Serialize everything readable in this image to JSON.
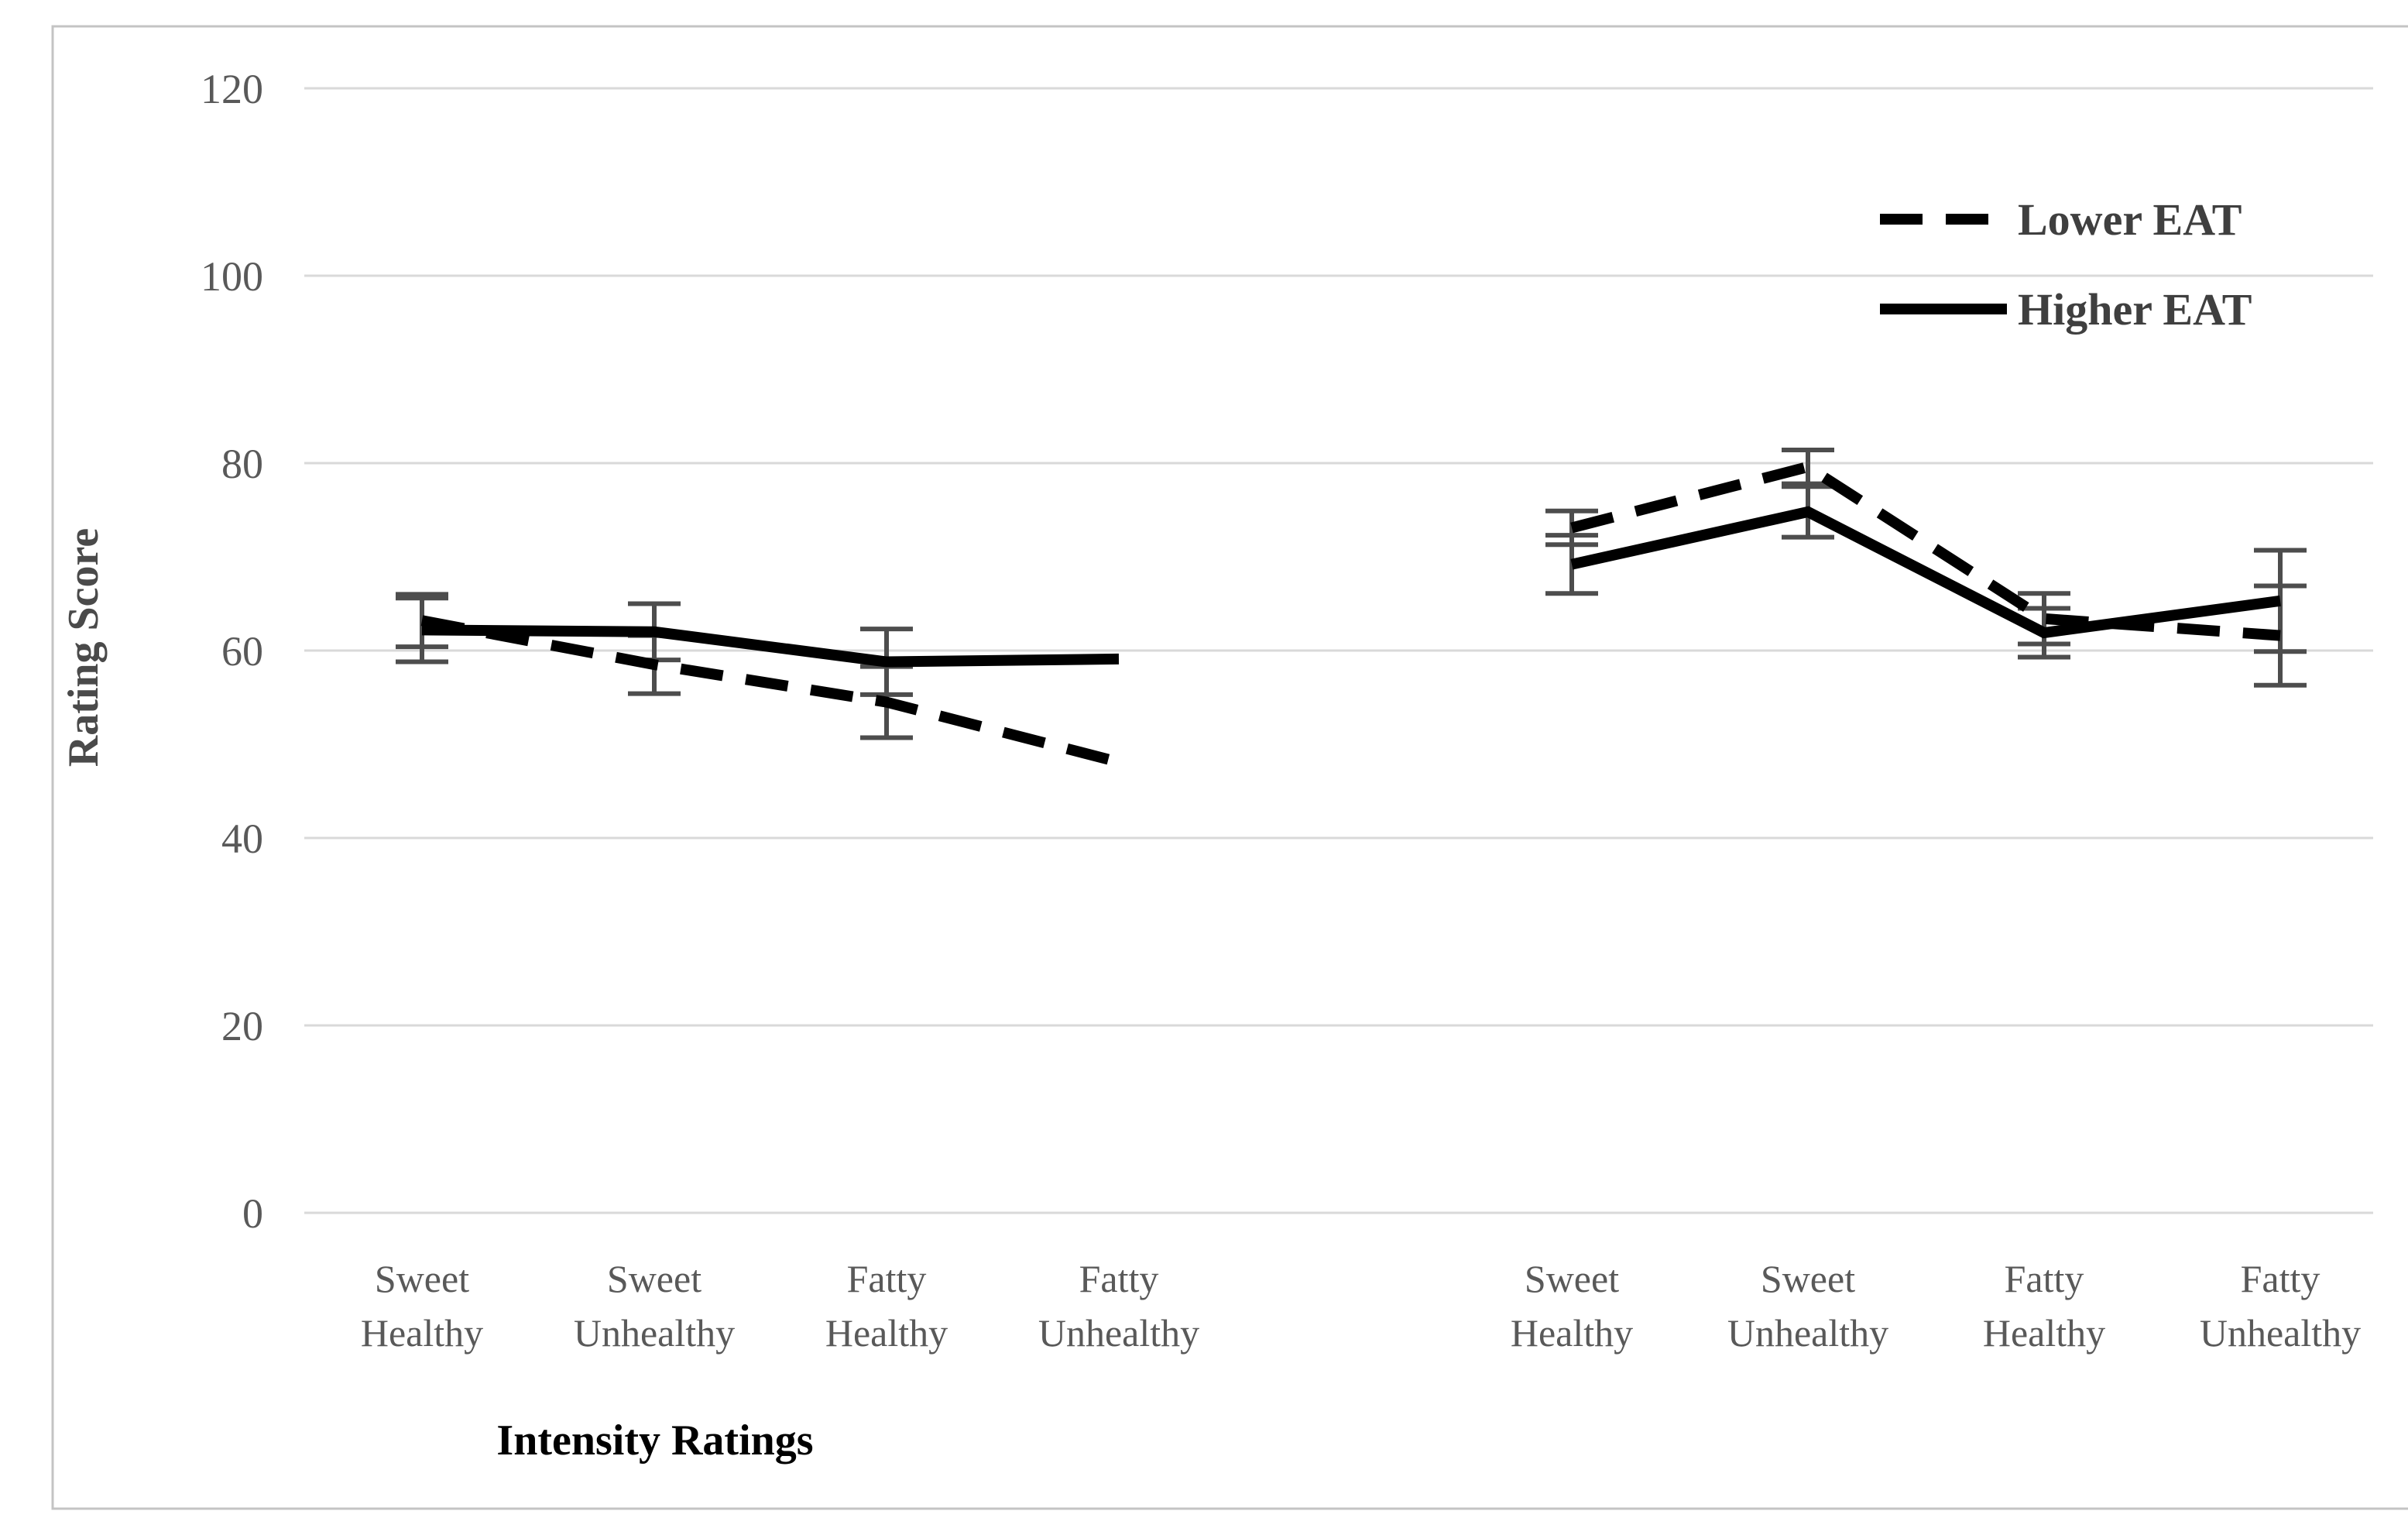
{
  "chart_data": {
    "type": "line",
    "title": "",
    "ylabel": "Rating Score",
    "xlabel": "Intensity Ratings",
    "grid": true,
    "legend_position": "top-right",
    "y_axis": {
      "min": 0,
      "max": 120,
      "tick_step": 20,
      "tick_values": [
        120,
        100,
        80,
        60,
        40,
        20,
        0
      ],
      "ticks": [
        "120",
        "100",
        "80",
        "60",
        "40",
        "20",
        "0"
      ]
    },
    "groups": [
      {
        "name": "left-group",
        "axis_title": "Intensity Ratings",
        "categories": [
          [
            "Sweet",
            "Healthy"
          ],
          [
            "Sweet",
            "Unhealthy"
          ],
          [
            "Fatty",
            "Healthy"
          ],
          [
            "Fatty",
            "Unhealthy"
          ]
        ]
      },
      {
        "name": "right-group",
        "axis_title": "",
        "categories": [
          [
            "Sweet",
            "Healthy"
          ],
          [
            "Sweet",
            "Unhealthy"
          ],
          [
            "Fatty",
            "Healthy"
          ],
          [
            "Fatty",
            "Unhealthy"
          ]
        ]
      }
    ],
    "series": [
      {
        "name": "Lower EAT",
        "style": "dashed",
        "left_values": [
          63.2,
          58.5,
          54.5,
          48.1
        ],
        "left_errors": [
          2.8,
          3.1,
          3.8,
          null
        ],
        "right_values": [
          73.1,
          79.6,
          63.4,
          61.6
        ],
        "right_errors": [
          1.8,
          1.8,
          2.7,
          5.3
        ]
      },
      {
        "name": "Higher EAT",
        "style": "solid",
        "left_values": [
          62.2,
          62.0,
          58.8,
          59.1
        ],
        "left_errors": [
          3.4,
          3.0,
          3.5,
          null
        ],
        "right_values": [
          69.2,
          74.8,
          61.9,
          65.3
        ],
        "right_errors": [
          3.1,
          2.7,
          2.6,
          5.4
        ]
      }
    ],
    "colors": {
      "series_line": "#000000",
      "error_bar": "#4d4d4d",
      "gridline": "#d9d9d9",
      "border": "#c4c4c4",
      "axis_text": "#595959",
      "background": "#ffffff"
    }
  }
}
